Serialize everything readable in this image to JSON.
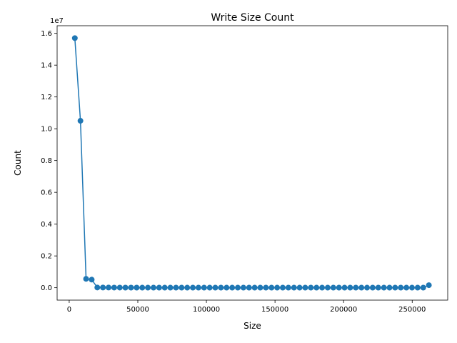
{
  "chart_data": {
    "type": "line",
    "title": "Write Size Count",
    "xlabel": "Size",
    "ylabel": "Count",
    "y_offset_label": "1e7",
    "xlim": [
      -8812,
      275884
    ],
    "ylim": [
      -780000,
      16480000
    ],
    "grid": false,
    "legend": "none",
    "x_ticks": [
      {
        "value": 0,
        "label": "0"
      },
      {
        "value": 50000,
        "label": "50000"
      },
      {
        "value": 100000,
        "label": "100000"
      },
      {
        "value": 150000,
        "label": "150000"
      },
      {
        "value": 200000,
        "label": "200000"
      },
      {
        "value": 250000,
        "label": "250000"
      }
    ],
    "y_ticks": [
      {
        "value": 0,
        "label": "0.0"
      },
      {
        "value": 2000000,
        "label": "0.2"
      },
      {
        "value": 4000000,
        "label": "0.4"
      },
      {
        "value": 6000000,
        "label": "0.6"
      },
      {
        "value": 8000000,
        "label": "0.8"
      },
      {
        "value": 10000000,
        "label": "1.0"
      },
      {
        "value": 12000000,
        "label": "1.2"
      },
      {
        "value": 14000000,
        "label": "1.4"
      },
      {
        "value": 16000000,
        "label": "1.6"
      }
    ],
    "series": [
      {
        "color": "#1f77b4",
        "marker": "circle",
        "x": [
          4096,
          8192,
          12288,
          16384,
          20480,
          24576,
          28672,
          32768,
          36864,
          40960,
          45056,
          49152,
          53248,
          57344,
          61440,
          65536,
          69632,
          73728,
          77824,
          81920,
          86016,
          90112,
          94208,
          98304,
          102400,
          106496,
          110592,
          114688,
          118784,
          122880,
          126976,
          131072,
          135168,
          139264,
          143360,
          147456,
          151552,
          155648,
          159744,
          163840,
          167936,
          172032,
          176128,
          180224,
          184320,
          188416,
          192512,
          196608,
          200704,
          204800,
          208896,
          212992,
          217088,
          221184,
          225280,
          229376,
          233472,
          237568,
          241664,
          245760,
          249856,
          253952,
          258048,
          262144
        ],
        "y": [
          15700000,
          10500000,
          560000,
          510000,
          15000,
          12000,
          10000,
          9000,
          8000,
          7000,
          6000,
          6000,
          5000,
          5000,
          5000,
          5000,
          4000,
          4000,
          4000,
          4000,
          4000,
          4000,
          4000,
          4000,
          4000,
          4000,
          4000,
          4000,
          4000,
          4000,
          4000,
          4000,
          4000,
          4000,
          4000,
          4000,
          4000,
          4000,
          4000,
          4000,
          4000,
          4000,
          4000,
          4000,
          4000,
          4000,
          4000,
          4000,
          4000,
          4000,
          4000,
          4000,
          4000,
          4000,
          4000,
          4000,
          4000,
          4000,
          4000,
          4000,
          4000,
          4000,
          4000,
          160000
        ]
      }
    ]
  }
}
